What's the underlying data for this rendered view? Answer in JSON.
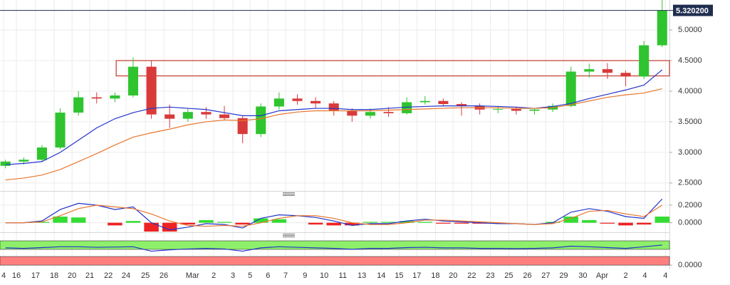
{
  "chart_data": [
    {
      "type": "candlestick",
      "xlim": [
        -0.3,
        36.4
      ],
      "ylim": [
        2.37,
        5.49
      ],
      "yticks": [
        {
          "value": 2.5,
          "label": "2.5000"
        },
        {
          "value": 3,
          "label": "3.0000"
        },
        {
          "value": 3.5,
          "label": "3.5000"
        },
        {
          "value": 4,
          "label": "4.0000"
        },
        {
          "value": 4.5,
          "label": "4.5000"
        },
        {
          "value": 5,
          "label": "5.0000"
        }
      ],
      "x": [
        0,
        1,
        2,
        3,
        4,
        5,
        6,
        7,
        8,
        9,
        10,
        11,
        12,
        13,
        14,
        15,
        16,
        17,
        18,
        19,
        20,
        21,
        22,
        23,
        24,
        25,
        26,
        27,
        28,
        29,
        30,
        31,
        32,
        33,
        34,
        35,
        36
      ],
      "open": [
        2.78,
        2.85,
        2.88,
        3.08,
        3.65,
        3.9,
        3.88,
        3.93,
        4.4,
        3.62,
        3.55,
        3.66,
        3.62,
        3.56,
        3.3,
        3.75,
        3.88,
        3.84,
        3.8,
        3.68,
        3.6,
        3.66,
        3.64,
        3.82,
        3.84,
        3.79,
        3.76,
        3.7,
        3.71,
        3.68,
        3.7,
        3.76,
        4.32,
        4.36,
        4.3,
        4.24,
        4.75
      ],
      "high": [
        2.88,
        2.92,
        3.12,
        3.72,
        4.0,
        3.98,
        3.98,
        4.55,
        4.5,
        3.78,
        3.72,
        3.74,
        3.76,
        3.6,
        3.8,
        3.98,
        3.95,
        3.9,
        3.84,
        3.72,
        3.72,
        3.74,
        3.9,
        3.92,
        3.88,
        3.82,
        3.8,
        3.76,
        3.74,
        3.72,
        3.8,
        4.4,
        4.45,
        4.46,
        4.34,
        4.82,
        5.5
      ],
      "low": [
        2.74,
        2.8,
        2.85,
        3.05,
        3.6,
        3.8,
        3.82,
        3.9,
        3.55,
        3.4,
        3.5,
        3.55,
        3.52,
        3.15,
        3.25,
        3.7,
        3.78,
        3.72,
        3.6,
        3.5,
        3.55,
        3.58,
        3.62,
        3.78,
        3.75,
        3.6,
        3.62,
        3.64,
        3.62,
        3.62,
        3.66,
        3.74,
        4.22,
        4.2,
        4.08,
        4.2,
        4.72
      ],
      "close": [
        2.85,
        2.88,
        3.08,
        3.65,
        3.9,
        3.88,
        3.93,
        4.4,
        3.62,
        3.55,
        3.66,
        3.62,
        3.56,
        3.3,
        3.75,
        3.88,
        3.84,
        3.8,
        3.68,
        3.6,
        3.66,
        3.64,
        3.82,
        3.84,
        3.79,
        3.76,
        3.7,
        3.71,
        3.68,
        3.7,
        3.76,
        4.32,
        4.36,
        4.3,
        4.24,
        4.75,
        5.32
      ],
      "up_color": "#2fc42f",
      "down_color": "#d83a3a",
      "lines": [
        {
          "color": "#2233cc",
          "values": [
            2.8,
            2.82,
            2.85,
            3.0,
            3.2,
            3.4,
            3.55,
            3.65,
            3.72,
            3.74,
            3.72,
            3.7,
            3.65,
            3.6,
            3.6,
            3.68,
            3.7,
            3.72,
            3.72,
            3.7,
            3.7,
            3.72,
            3.74,
            3.75,
            3.76,
            3.76,
            3.76,
            3.75,
            3.74,
            3.72,
            3.75,
            3.8,
            3.88,
            3.95,
            4.02,
            4.1,
            4.35
          ]
        },
        {
          "color": "#e8772e",
          "values": [
            2.55,
            2.58,
            2.63,
            2.72,
            2.85,
            2.98,
            3.12,
            3.25,
            3.32,
            3.38,
            3.45,
            3.5,
            3.53,
            3.52,
            3.55,
            3.62,
            3.66,
            3.68,
            3.68,
            3.68,
            3.68,
            3.69,
            3.7,
            3.71,
            3.72,
            3.73,
            3.73,
            3.73,
            3.72,
            3.72,
            3.73,
            3.78,
            3.84,
            3.9,
            3.94,
            3.97,
            4.04
          ]
        }
      ],
      "zone": {
        "from": 4.25,
        "to": 4.5,
        "x_start": 6.07,
        "color": "#c0392b"
      },
      "last_price": 5.3202,
      "last_price_label": "5.320200",
      "last_price_color": "#1f2d4f"
    },
    {
      "type": "macd",
      "xlim": [
        -0.3,
        36.4
      ],
      "ylim": [
        -0.1,
        0.28
      ],
      "yticks": [
        {
          "value": 0,
          "label": "0.0000"
        },
        {
          "value": 0.2,
          "label": "0.2000"
        }
      ],
      "x": [
        0,
        1,
        2,
        3,
        4,
        5,
        6,
        7,
        8,
        9,
        10,
        11,
        12,
        13,
        14,
        15,
        16,
        17,
        18,
        19,
        20,
        21,
        22,
        23,
        24,
        25,
        26,
        27,
        28,
        29,
        30,
        31,
        32,
        33,
        34,
        35,
        36
      ],
      "histogram": [
        0,
        0,
        0.01,
        0.07,
        0.06,
        0,
        -0.03,
        0.02,
        -0.1,
        -0.1,
        -0.02,
        0.03,
        0.01,
        -0.02,
        0.05,
        0.04,
        0,
        -0.02,
        -0.03,
        -0.03,
        0.01,
        0.01,
        0.02,
        0.01,
        -0.01,
        -0.01,
        -0.01,
        -0.01,
        0,
        0,
        0.01,
        0.07,
        0.03,
        -0.01,
        -0.03,
        -0.02,
        0.07
      ],
      "pos_color": "#33dd33",
      "neg_color": "#ee2222",
      "lines": [
        {
          "color": "#2233cc",
          "values": [
            0,
            0,
            0.02,
            0.15,
            0.22,
            0.2,
            0.15,
            0.18,
            0,
            -0.08,
            -0.05,
            -0.01,
            -0.02,
            -0.06,
            0.05,
            0.09,
            0.08,
            0.06,
            0.02,
            -0.03,
            -0.01,
            -0.01,
            0.02,
            0.04,
            0.02,
            0.01,
            0,
            -0.01,
            -0.01,
            -0.02,
            0,
            0.12,
            0.16,
            0.13,
            0.07,
            0.05,
            0.27
          ]
        },
        {
          "color": "#e8772e",
          "values": [
            0,
            0,
            0.01,
            0.08,
            0.16,
            0.2,
            0.18,
            0.16,
            0.1,
            0.02,
            -0.03,
            -0.04,
            -0.03,
            -0.04,
            0,
            0.05,
            0.08,
            0.08,
            0.05,
            0,
            -0.02,
            -0.02,
            0,
            0.03,
            0.03,
            0.02,
            0.01,
            0,
            -0.01,
            -0.02,
            -0.01,
            0.05,
            0.13,
            0.14,
            0.1,
            0.07,
            0.2
          ]
        }
      ]
    },
    {
      "type": "line",
      "xlim": [
        -0.3,
        36.4
      ],
      "ylim": [
        -0.1,
        1.0
      ],
      "yticks": [
        {
          "value": 0,
          "label": "0.0000"
        }
      ],
      "x": [
        0,
        1,
        2,
        3,
        4,
        5,
        6,
        7,
        8,
        9,
        10,
        11,
        12,
        13,
        14,
        15,
        16,
        17,
        18,
        19,
        20,
        21,
        22,
        23,
        24,
        25,
        26,
        27,
        28,
        29,
        30,
        31,
        32,
        33,
        34,
        35,
        36
      ],
      "bands": [
        {
          "from": 0.565,
          "to": 0.872,
          "color": "#8ef06a"
        },
        {
          "from": 0,
          "to": 0.309,
          "color": "#ff7f7f"
        }
      ],
      "lines": [
        {
          "color": "#2233cc",
          "values": [
            0.62,
            0.6,
            0.63,
            0.66,
            0.66,
            0.64,
            0.65,
            0.66,
            0.5,
            0.55,
            0.58,
            0.6,
            0.58,
            0.5,
            0.62,
            0.66,
            0.64,
            0.62,
            0.6,
            0.57,
            0.6,
            0.6,
            0.63,
            0.64,
            0.62,
            0.62,
            0.6,
            0.6,
            0.59,
            0.6,
            0.62,
            0.68,
            0.66,
            0.63,
            0.6,
            0.66,
            0.72
          ]
        }
      ],
      "xticks": [
        {
          "value": -0.1,
          "label": "4"
        },
        {
          "value": 0.6,
          "label": "16"
        },
        {
          "value": 1.65,
          "label": "17"
        },
        {
          "value": 2.67,
          "label": "18"
        },
        {
          "value": 3.65,
          "label": "20"
        },
        {
          "value": 4.62,
          "label": "21"
        },
        {
          "value": 5.64,
          "label": "22"
        },
        {
          "value": 6.61,
          "label": "24"
        },
        {
          "value": 7.67,
          "label": "25"
        },
        {
          "value": 8.68,
          "label": "26"
        },
        {
          "value": 10.25,
          "label": "Mar"
        },
        {
          "value": 11.42,
          "label": "2"
        },
        {
          "value": 12.47,
          "label": "3"
        },
        {
          "value": 13.41,
          "label": "5"
        },
        {
          "value": 14.39,
          "label": "6"
        },
        {
          "value": 15.36,
          "label": "7"
        },
        {
          "value": 16.42,
          "label": "9"
        },
        {
          "value": 17.47,
          "label": "10"
        },
        {
          "value": 18.49,
          "label": "11"
        },
        {
          "value": 19.54,
          "label": "13"
        },
        {
          "value": 20.6,
          "label": "14"
        },
        {
          "value": 21.58,
          "label": "15"
        },
        {
          "value": 22.55,
          "label": "17"
        },
        {
          "value": 23.57,
          "label": "18"
        },
        {
          "value": 24.54,
          "label": "20"
        },
        {
          "value": 25.56,
          "label": "22"
        },
        {
          "value": 26.58,
          "label": "23"
        },
        {
          "value": 27.59,
          "label": "25"
        },
        {
          "value": 28.61,
          "label": "26"
        },
        {
          "value": 29.62,
          "label": "27"
        },
        {
          "value": 30.6,
          "label": "29"
        },
        {
          "value": 31.65,
          "label": "30"
        },
        {
          "value": 32.71,
          "label": "Apr"
        },
        {
          "value": 34.0,
          "label": "2"
        },
        {
          "value": 35.05,
          "label": "4"
        },
        {
          "value": 36.18,
          "label": "4"
        }
      ]
    }
  ]
}
